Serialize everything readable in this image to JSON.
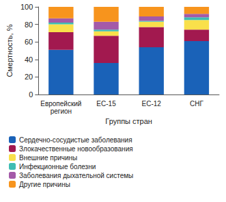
{
  "chart_data": {
    "type": "bar",
    "stacked": true,
    "x_label": "Группы стран",
    "y_label": "Смертность, %",
    "categories": [
      "Европейский регион",
      "ЕС-15",
      "ЕС-12",
      "СНГ"
    ],
    "series": [
      {
        "name": "Сердечно-сосудистые заболевания",
        "color": "#1a62b8",
        "values": [
          51,
          36,
          54,
          61
        ]
      },
      {
        "name": "Злокачественные новообразования",
        "color": "#a2194f",
        "values": [
          20,
          31,
          23,
          13
        ]
      },
      {
        "name": "Внешние причины",
        "color": "#f9e04b",
        "values": [
          9,
          5,
          6,
          11
        ]
      },
      {
        "name": "Инфекционные болезни",
        "color": "#3fbdb3",
        "values": [
          2,
          2,
          1,
          3
        ]
      },
      {
        "name": "Заболевания дыхательной системы",
        "color": "#a45aa8",
        "values": [
          5,
          9,
          5,
          4
        ]
      },
      {
        "name": "Другие причины",
        "color": "#f7941d",
        "values": [
          13,
          17,
          11,
          8
        ]
      }
    ],
    "ylim": [
      0,
      100
    ],
    "yticks": [
      0,
      20,
      40,
      60,
      80,
      100
    ],
    "grid": false,
    "legend": "bottom"
  }
}
